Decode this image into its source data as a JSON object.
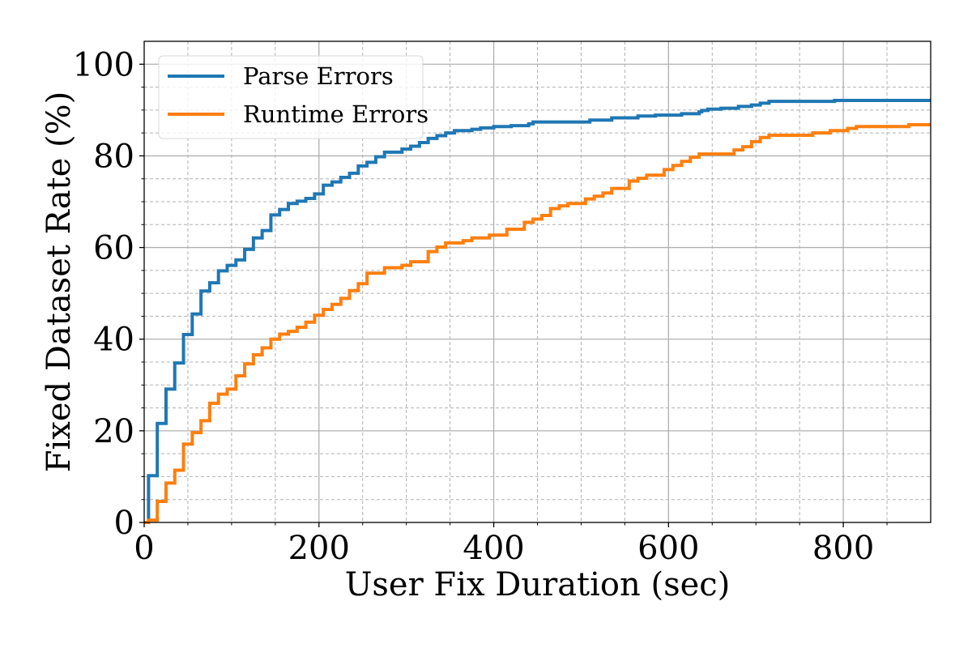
{
  "chart_data": {
    "type": "line",
    "step": true,
    "xlabel": "User Fix Duration (sec)",
    "ylabel": "Fixed Dataset Rate (%)",
    "xlim": [
      0,
      900
    ],
    "ylim": [
      0,
      105
    ],
    "xticks": [
      0,
      200,
      400,
      600,
      800
    ],
    "yticks": [
      0,
      20,
      40,
      60,
      80,
      100
    ],
    "xminor_step": 50,
    "yminor_step": 5,
    "grid": true,
    "legend_position": "top-left",
    "series": [
      {
        "name": "Parse Errors",
        "color": "#1f77b4",
        "points": [
          [
            0,
            0
          ],
          [
            5,
            0
          ],
          [
            5,
            10.2
          ],
          [
            15,
            10.2
          ],
          [
            15,
            21.6
          ],
          [
            25,
            21.6
          ],
          [
            25,
            29.1
          ],
          [
            35,
            29.1
          ],
          [
            35,
            34.8
          ],
          [
            45,
            34.8
          ],
          [
            45,
            41
          ],
          [
            55,
            41
          ],
          [
            55,
            45.5
          ],
          [
            65,
            45.5
          ],
          [
            65,
            50.5
          ],
          [
            75,
            50.5
          ],
          [
            75,
            52.3
          ],
          [
            85,
            52.3
          ],
          [
            85,
            54.9
          ],
          [
            95,
            54.9
          ],
          [
            95,
            56.1
          ],
          [
            105,
            56.1
          ],
          [
            105,
            57.3
          ],
          [
            115,
            57.3
          ],
          [
            115,
            59.6
          ],
          [
            125,
            59.6
          ],
          [
            125,
            62.1
          ],
          [
            135,
            62.1
          ],
          [
            135,
            63.7
          ],
          [
            145,
            63.7
          ],
          [
            145,
            67.1
          ],
          [
            155,
            67.1
          ],
          [
            155,
            68.3
          ],
          [
            165,
            68.3
          ],
          [
            165,
            69.6
          ],
          [
            175,
            69.6
          ],
          [
            175,
            70.1
          ],
          [
            185,
            70.1
          ],
          [
            185,
            70.7
          ],
          [
            195,
            70.7
          ],
          [
            195,
            71.7
          ],
          [
            205,
            71.7
          ],
          [
            205,
            73.6
          ],
          [
            215,
            73.6
          ],
          [
            215,
            74.3
          ],
          [
            225,
            74.3
          ],
          [
            225,
            75.3
          ],
          [
            235,
            75.3
          ],
          [
            235,
            76.2
          ],
          [
            245,
            76.2
          ],
          [
            245,
            77.8
          ],
          [
            255,
            77.8
          ],
          [
            255,
            78.6
          ],
          [
            265,
            78.6
          ],
          [
            265,
            79.8
          ],
          [
            275,
            79.8
          ],
          [
            275,
            80.8
          ],
          [
            295,
            80.8
          ],
          [
            295,
            81.5
          ],
          [
            305,
            81.5
          ],
          [
            305,
            82.1
          ],
          [
            315,
            82.1
          ],
          [
            315,
            82.9
          ],
          [
            325,
            82.9
          ],
          [
            325,
            83.8
          ],
          [
            335,
            83.8
          ],
          [
            335,
            84.4
          ],
          [
            345,
            84.4
          ],
          [
            345,
            85
          ],
          [
            355,
            85
          ],
          [
            355,
            85.5
          ],
          [
            375,
            85.5
          ],
          [
            375,
            85.8
          ],
          [
            385,
            85.8
          ],
          [
            385,
            86.1
          ],
          [
            400,
            86.1
          ],
          [
            400,
            86.4
          ],
          [
            420,
            86.4
          ],
          [
            420,
            86.6
          ],
          [
            440,
            86.6
          ],
          [
            440,
            87
          ],
          [
            445,
            87
          ],
          [
            445,
            87.4
          ],
          [
            510,
            87.4
          ],
          [
            510,
            87.8
          ],
          [
            535,
            87.8
          ],
          [
            535,
            88.3
          ],
          [
            565,
            88.3
          ],
          [
            565,
            88.7
          ],
          [
            585,
            88.7
          ],
          [
            585,
            88.9
          ],
          [
            615,
            88.9
          ],
          [
            615,
            89.2
          ],
          [
            635,
            89.2
          ],
          [
            635,
            89.6
          ],
          [
            638,
            89.6
          ],
          [
            638,
            89.9
          ],
          [
            645,
            89.9
          ],
          [
            645,
            90.2
          ],
          [
            660,
            90.2
          ],
          [
            660,
            90.4
          ],
          [
            680,
            90.4
          ],
          [
            680,
            90.8
          ],
          [
            695,
            90.8
          ],
          [
            695,
            91.1
          ],
          [
            705,
            91.1
          ],
          [
            705,
            91.5
          ],
          [
            715,
            91.5
          ],
          [
            715,
            91.9
          ],
          [
            790,
            91.9
          ],
          [
            790,
            92.1
          ],
          [
            900,
            92.1
          ]
        ]
      },
      {
        "name": "Runtime Errors",
        "color": "#ff7f0e",
        "points": [
          [
            0,
            0
          ],
          [
            5,
            0
          ],
          [
            5,
            0.5
          ],
          [
            15,
            0.5
          ],
          [
            15,
            4.6
          ],
          [
            25,
            4.6
          ],
          [
            25,
            8.6
          ],
          [
            35,
            8.6
          ],
          [
            35,
            11.4
          ],
          [
            45,
            11.4
          ],
          [
            45,
            17.1
          ],
          [
            55,
            17.1
          ],
          [
            55,
            19.6
          ],
          [
            65,
            19.6
          ],
          [
            65,
            22.2
          ],
          [
            75,
            22.2
          ],
          [
            75,
            26
          ],
          [
            85,
            26
          ],
          [
            85,
            28
          ],
          [
            95,
            28
          ],
          [
            95,
            29.1
          ],
          [
            105,
            29.1
          ],
          [
            105,
            32
          ],
          [
            115,
            32
          ],
          [
            115,
            34.6
          ],
          [
            125,
            34.6
          ],
          [
            125,
            36.6
          ],
          [
            135,
            36.6
          ],
          [
            135,
            38.1
          ],
          [
            145,
            38.1
          ],
          [
            145,
            40
          ],
          [
            155,
            40
          ],
          [
            155,
            41.1
          ],
          [
            165,
            41.1
          ],
          [
            165,
            41.7
          ],
          [
            175,
            41.7
          ],
          [
            175,
            42.6
          ],
          [
            185,
            42.6
          ],
          [
            185,
            43.7
          ],
          [
            195,
            43.7
          ],
          [
            195,
            45.2
          ],
          [
            205,
            45.2
          ],
          [
            205,
            46.5
          ],
          [
            215,
            46.5
          ],
          [
            215,
            47.6
          ],
          [
            225,
            47.6
          ],
          [
            225,
            48.9
          ],
          [
            235,
            48.9
          ],
          [
            235,
            50.6
          ],
          [
            245,
            50.6
          ],
          [
            245,
            52.1
          ],
          [
            255,
            52.1
          ],
          [
            255,
            54.4
          ],
          [
            275,
            54.4
          ],
          [
            275,
            55.6
          ],
          [
            295,
            55.6
          ],
          [
            295,
            56.1
          ],
          [
            305,
            56.1
          ],
          [
            305,
            56.9
          ],
          [
            325,
            56.9
          ],
          [
            325,
            59.1
          ],
          [
            335,
            59.1
          ],
          [
            335,
            60.1
          ],
          [
            345,
            60.1
          ],
          [
            345,
            61
          ],
          [
            365,
            61
          ],
          [
            365,
            61.5
          ],
          [
            375,
            61.5
          ],
          [
            375,
            62.1
          ],
          [
            395,
            62.1
          ],
          [
            395,
            62.7
          ],
          [
            415,
            62.7
          ],
          [
            415,
            64
          ],
          [
            435,
            64
          ],
          [
            435,
            65.5
          ],
          [
            445,
            65.5
          ],
          [
            445,
            66.2
          ],
          [
            455,
            66.2
          ],
          [
            455,
            67
          ],
          [
            465,
            67
          ],
          [
            465,
            68.5
          ],
          [
            475,
            68.5
          ],
          [
            475,
            69.1
          ],
          [
            485,
            69.1
          ],
          [
            485,
            69.6
          ],
          [
            505,
            69.6
          ],
          [
            505,
            70.6
          ],
          [
            515,
            70.6
          ],
          [
            515,
            71.2
          ],
          [
            525,
            71.2
          ],
          [
            525,
            71.9
          ],
          [
            535,
            71.9
          ],
          [
            535,
            72.9
          ],
          [
            555,
            72.9
          ],
          [
            555,
            74.5
          ],
          [
            565,
            74.5
          ],
          [
            565,
            75.1
          ],
          [
            575,
            75.1
          ],
          [
            575,
            75.8
          ],
          [
            595,
            75.8
          ],
          [
            595,
            77
          ],
          [
            605,
            77
          ],
          [
            605,
            77.9
          ],
          [
            615,
            77.9
          ],
          [
            615,
            78.8
          ],
          [
            625,
            78.8
          ],
          [
            625,
            79.7
          ],
          [
            635,
            79.7
          ],
          [
            635,
            80.4
          ],
          [
            675,
            80.4
          ],
          [
            675,
            81.3
          ],
          [
            685,
            81.3
          ],
          [
            685,
            82
          ],
          [
            695,
            82
          ],
          [
            695,
            83.1
          ],
          [
            705,
            83.1
          ],
          [
            705,
            84
          ],
          [
            715,
            84
          ],
          [
            715,
            84.5
          ],
          [
            765,
            84.5
          ],
          [
            765,
            85
          ],
          [
            785,
            85
          ],
          [
            785,
            85.5
          ],
          [
            805,
            85.5
          ],
          [
            805,
            86
          ],
          [
            815,
            86
          ],
          [
            815,
            86.4
          ],
          [
            875,
            86.4
          ],
          [
            875,
            86.8
          ],
          [
            900,
            86.8
          ]
        ]
      }
    ]
  }
}
